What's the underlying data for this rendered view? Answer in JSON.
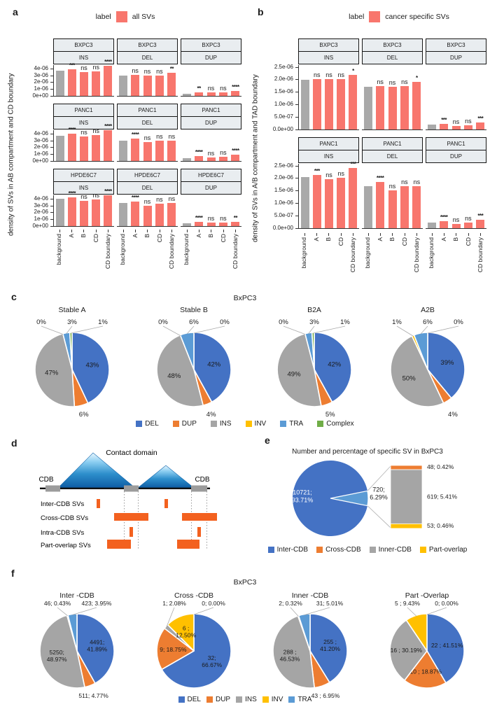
{
  "panel_letters": {
    "a": "a",
    "b": "b",
    "c": "c",
    "d": "d",
    "e": "e",
    "f": "f"
  },
  "colors": {
    "bar_red": "#F8766D",
    "bar_gray": "#A9A9A9",
    "strip_bg": "#E9EDF0",
    "axis": "#333333",
    "pie": {
      "DEL": "#4472C4",
      "DUP": "#ED7D31",
      "INS": "#A5A5A5",
      "INV": "#FFC000",
      "TRA": "#5B9BD5",
      "Complex": "#70AD47"
    },
    "cdb": {
      "Inter-CDB": "#4472C4",
      "Cross-CDB": "#ED7D31",
      "Inner-CDB": "#A5A5A5",
      "Part-overlap": "#FFC000"
    },
    "other_wedge": "#5B9BD5",
    "sv_orange": "#F3611F",
    "cdb_gray": "#9C9C9C"
  },
  "diagram": {
    "title": "Contact domain",
    "cdb_label": "CDB",
    "sv_rows": [
      "Inter-CDB SVs",
      "Cross-CDB SVs",
      "Intra-CDB SVs",
      "Part-overlap SVs"
    ]
  },
  "chart_data": [
    {
      "id": "a",
      "type": "bar",
      "legend_label": "label",
      "legend_value": "all SVs",
      "ylabel": "density of SVs in AB compartment and CD boundary",
      "categories": [
        "background",
        "A",
        "B",
        "CD",
        "CD boundary"
      ],
      "col_facets": [
        "INS",
        "DEL",
        "DUP"
      ],
      "ylim": [
        0,
        4.6e-06
      ],
      "y_ticks": [
        {
          "label": "4e-06",
          "value": 4e-06
        },
        {
          "label": "3e-06",
          "value": 3e-06
        },
        {
          "label": "2e-06",
          "value": 2e-06
        },
        {
          "label": "1e-06",
          "value": 1e-06
        },
        {
          "label": "0e+00",
          "value": 0
        }
      ],
      "rows": [
        {
          "cell_line": "BXPC3",
          "facets": [
            {
              "sv_type": "INS",
              "values": [
                3.6e-06,
                3.8e-06,
                3.45e-06,
                3.55e-06,
                4.35e-06
              ],
              "sig": [
                "***",
                "ns",
                "ns",
                "****"
              ]
            },
            {
              "sv_type": "DEL",
              "values": [
                2.9e-06,
                3e-06,
                2.9e-06,
                2.9e-06,
                3.3e-06
              ],
              "sig": [
                "ns",
                "ns",
                "ns",
                "**"
              ]
            },
            {
              "sv_type": "DUP",
              "values": [
                3e-07,
                5e-07,
                4.2e-07,
                4.4e-07,
                6.5e-07
              ],
              "sig": [
                "**",
                "ns",
                "ns",
                "****"
              ]
            }
          ]
        },
        {
          "cell_line": "PANC1",
          "facets": [
            {
              "sv_type": "INS",
              "values": [
                3.6e-06,
                3.95e-06,
                3.5e-06,
                3.7e-06,
                4.45e-06
              ],
              "sig": [
                "****",
                "ns",
                "ns",
                "****"
              ]
            },
            {
              "sv_type": "DEL",
              "values": [
                2.9e-06,
                3.2e-06,
                2.75e-06,
                2.95e-06,
                2.9e-06
              ],
              "sig": [
                "****",
                "ns",
                "ns",
                "ns"
              ]
            },
            {
              "sv_type": "DUP",
              "values": [
                3.5e-07,
                6.2e-07,
                5e-07,
                5.2e-07,
                8.5e-07
              ],
              "sig": [
                "****",
                "ns",
                "ns",
                "****"
              ]
            }
          ]
        },
        {
          "cell_line": "HPDE6C7",
          "facets": [
            {
              "sv_type": "INS",
              "values": [
                3.9e-06,
                4.15e-06,
                3.6e-06,
                3.85e-06,
                4.4e-06
              ],
              "sig": [
                "****",
                "ns",
                "ns",
                "****"
              ]
            },
            {
              "sv_type": "DEL",
              "values": [
                3.3e-06,
                3.5e-06,
                2.95e-06,
                3.2e-06,
                3.3e-06
              ],
              "sig": [
                "****",
                "ns",
                "ns",
                "ns"
              ]
            },
            {
              "sv_type": "DUP",
              "values": [
                4e-07,
                5.5e-07,
                4.5e-07,
                5e-07,
                6e-07
              ],
              "sig": [
                "****",
                "ns",
                "ns",
                "**"
              ]
            }
          ]
        }
      ]
    },
    {
      "id": "b",
      "type": "bar",
      "legend_label": "label",
      "legend_value": "cancer specific SVs",
      "ylabel": "density of SVs in A/B compartment and TAD boundary",
      "categories": [
        "background",
        "A",
        "B",
        "CD",
        "CD boundary"
      ],
      "col_facets": [
        "INS",
        "DEL",
        "DUP"
      ],
      "ylim": [
        0,
        2.6e-06
      ],
      "y_ticks": [
        {
          "label": "2.5e-06",
          "value": 2.5e-06
        },
        {
          "label": "2.0e-06",
          "value": 2e-06
        },
        {
          "label": "1.5e-06",
          "value": 1.5e-06
        },
        {
          "label": "1.0e-06",
          "value": 1e-06
        },
        {
          "label": "5.0e-07",
          "value": 5e-07
        },
        {
          "label": "0.0e+00",
          "value": 0
        }
      ],
      "rows": [
        {
          "cell_line": "BXPC3",
          "facets": [
            {
              "sv_type": "INS",
              "values": [
                1.97e-06,
                2e-06,
                1.99e-06,
                2e-06,
                2.18e-06
              ],
              "sig": [
                "ns",
                "ns",
                "ns",
                "*"
              ]
            },
            {
              "sv_type": "DEL",
              "values": [
                1.7e-06,
                1.73e-06,
                1.7e-06,
                1.71e-06,
                1.9e-06
              ],
              "sig": [
                "ns",
                "ns",
                "ns",
                "*"
              ]
            },
            {
              "sv_type": "DUP",
              "values": [
                1.7e-07,
                2e-07,
                1.4e-07,
                1.5e-07,
                2.8e-07
              ],
              "sig": [
                "***",
                "ns",
                "ns",
                "***"
              ]
            }
          ]
        },
        {
          "cell_line": "PANC1",
          "facets": [
            {
              "sv_type": "INS",
              "values": [
                2.02e-06,
                2.12e-06,
                1.93e-06,
                2e-06,
                2.4e-06
              ],
              "sig": [
                "***",
                "ns",
                "ns",
                "***"
              ]
            },
            {
              "sv_type": "DEL",
              "values": [
                1.65e-06,
                1.82e-06,
                1.5e-06,
                1.66e-06,
                1.66e-06
              ],
              "sig": [
                "****",
                "ns",
                "ns",
                "ns"
              ]
            },
            {
              "sv_type": "DUP",
              "values": [
                2e-07,
                2.8e-07,
                1.5e-07,
                2e-07,
                3.3e-07
              ],
              "sig": [
                "****",
                "ns",
                "ns",
                "***"
              ]
            }
          ]
        }
      ]
    },
    {
      "id": "c",
      "type": "pie",
      "title": "BxPC3",
      "legend": [
        "DEL",
        "DUP",
        "INS",
        "INV",
        "TRA",
        "Complex"
      ],
      "pies": [
        {
          "title": "Stable A",
          "slices": [
            {
              "name": "DEL",
              "pct": 43,
              "label": "43%"
            },
            {
              "name": "DUP",
              "pct": 6,
              "label": "6%"
            },
            {
              "name": "INS",
              "pct": 47,
              "label": "47%"
            },
            {
              "name": "INV",
              "pct": 0,
              "label": "0%"
            },
            {
              "name": "TRA",
              "pct": 3,
              "label": "3%"
            },
            {
              "name": "Complex",
              "pct": 1,
              "label": "1%"
            }
          ]
        },
        {
          "title": "Stable B",
          "slices": [
            {
              "name": "DEL",
              "pct": 42,
              "label": "42%"
            },
            {
              "name": "DUP",
              "pct": 4,
              "label": "4%"
            },
            {
              "name": "INS",
              "pct": 48,
              "label": "48%"
            },
            {
              "name": "INV",
              "pct": 0,
              "label": "0%"
            },
            {
              "name": "TRA",
              "pct": 6,
              "label": "6%"
            },
            {
              "name": "Complex",
              "pct": 0,
              "label": "0%"
            }
          ]
        },
        {
          "title": "B2A",
          "slices": [
            {
              "name": "DEL",
              "pct": 42,
              "label": "42%"
            },
            {
              "name": "DUP",
              "pct": 5,
              "label": "5%"
            },
            {
              "name": "INS",
              "pct": 49,
              "label": "49%"
            },
            {
              "name": "INV",
              "pct": 0,
              "label": "0%"
            },
            {
              "name": "TRA",
              "pct": 3,
              "label": "3%"
            },
            {
              "name": "Complex",
              "pct": 1,
              "label": "1%"
            }
          ]
        },
        {
          "title": "A2B",
          "slices": [
            {
              "name": "DEL",
              "pct": 39,
              "label": "39%"
            },
            {
              "name": "DUP",
              "pct": 4,
              "label": "4%"
            },
            {
              "name": "INS",
              "pct": 50,
              "label": "50%"
            },
            {
              "name": "INV",
              "pct": 1,
              "label": "1%"
            },
            {
              "name": "TRA",
              "pct": 6,
              "label": "6%"
            },
            {
              "name": "Complex",
              "pct": 0,
              "label": "0%"
            }
          ]
        }
      ]
    },
    {
      "id": "e",
      "type": "pie-of-bar",
      "title": "Number and percentage of specific SV in BxPC3",
      "main": {
        "name": "Inter-CDB",
        "count": 10721,
        "pct": 93.71,
        "label": "10721;\n93.71%"
      },
      "other": {
        "count": 720,
        "pct": 6.29,
        "label": "720;\n6.29%"
      },
      "bar_segments": [
        {
          "name": "Cross-CDB",
          "count": 48,
          "pct": 0.42,
          "label": "48; 0.42%"
        },
        {
          "name": "Inner-CDB",
          "count": 619,
          "pct": 5.41,
          "label": "619; 5.41%"
        },
        {
          "name": "Part-overlap",
          "count": 53,
          "pct": 0.46,
          "label": "53; 0.46%"
        }
      ],
      "legend": [
        "Inter-CDB",
        "Cross-CDB",
        "Inner-CDB",
        "Part-overlap"
      ]
    },
    {
      "id": "f",
      "type": "pie",
      "title": "BxPC3",
      "legend": [
        "DEL",
        "DUP",
        "INS",
        "INV",
        "TRA"
      ],
      "pies": [
        {
          "title": "Inter -CDB",
          "slices": [
            {
              "name": "DEL",
              "count": 4491,
              "pct": 41.89,
              "label": "4491;\n41.89%"
            },
            {
              "name": "DUP",
              "count": 511,
              "pct": 4.77,
              "label": "511; 4.77%"
            },
            {
              "name": "INS",
              "count": 5250,
              "pct": 48.97,
              "label": "5250;\n48.97%"
            },
            {
              "name": "INV",
              "count": 46,
              "pct": 0.43,
              "label": "46; 0.43%"
            },
            {
              "name": "TRA",
              "count": 423,
              "pct": 3.95,
              "label": "423; 3.95%"
            }
          ]
        },
        {
          "title": "Cross -CDB",
          "slices": [
            {
              "name": "DEL",
              "count": 32,
              "pct": 66.67,
              "label": "32;\n66.67%"
            },
            {
              "name": "DUP",
              "count": 9,
              "pct": 18.75,
              "label": "9; 18.75%"
            },
            {
              "name": "INS",
              "count": 1,
              "pct": 2.08,
              "label": "1; 2.08%"
            },
            {
              "name": "INV",
              "count": 6,
              "pct": 12.5,
              "label": "6 ;\n12.50%"
            },
            {
              "name": "TRA",
              "count": 0,
              "pct": 0.0,
              "label": "0; 0.00%"
            }
          ]
        },
        {
          "title": "Inner -CDB",
          "slices": [
            {
              "name": "DEL",
              "count": 255,
              "pct": 41.2,
              "label": "255 ;\n41.20%"
            },
            {
              "name": "DUP",
              "count": 43,
              "pct": 6.95,
              "label": "43 ; 6.95%"
            },
            {
              "name": "INS",
              "count": 288,
              "pct": 46.53,
              "label": "288 ;\n46.53%"
            },
            {
              "name": "INV",
              "count": 2,
              "pct": 0.32,
              "label": "2; 0.32%"
            },
            {
              "name": "TRA",
              "count": 31,
              "pct": 5.01,
              "label": "31; 5.01%"
            }
          ]
        },
        {
          "title": "Part -Overlap",
          "slices": [
            {
              "name": "DEL",
              "count": 22,
              "pct": 41.51,
              "label": "22 ; 41.51%"
            },
            {
              "name": "DUP",
              "count": 10,
              "pct": 18.87,
              "label": "10 ; 18.87%"
            },
            {
              "name": "INS",
              "count": 16,
              "pct": 30.19,
              "label": "16 ; 30.19%"
            },
            {
              "name": "INV",
              "count": 5,
              "pct": 9.43,
              "label": "5 ; 9.43%"
            },
            {
              "name": "TRA",
              "count": 0,
              "pct": 0.0,
              "label": "0; 0.00%"
            }
          ]
        }
      ]
    }
  ]
}
